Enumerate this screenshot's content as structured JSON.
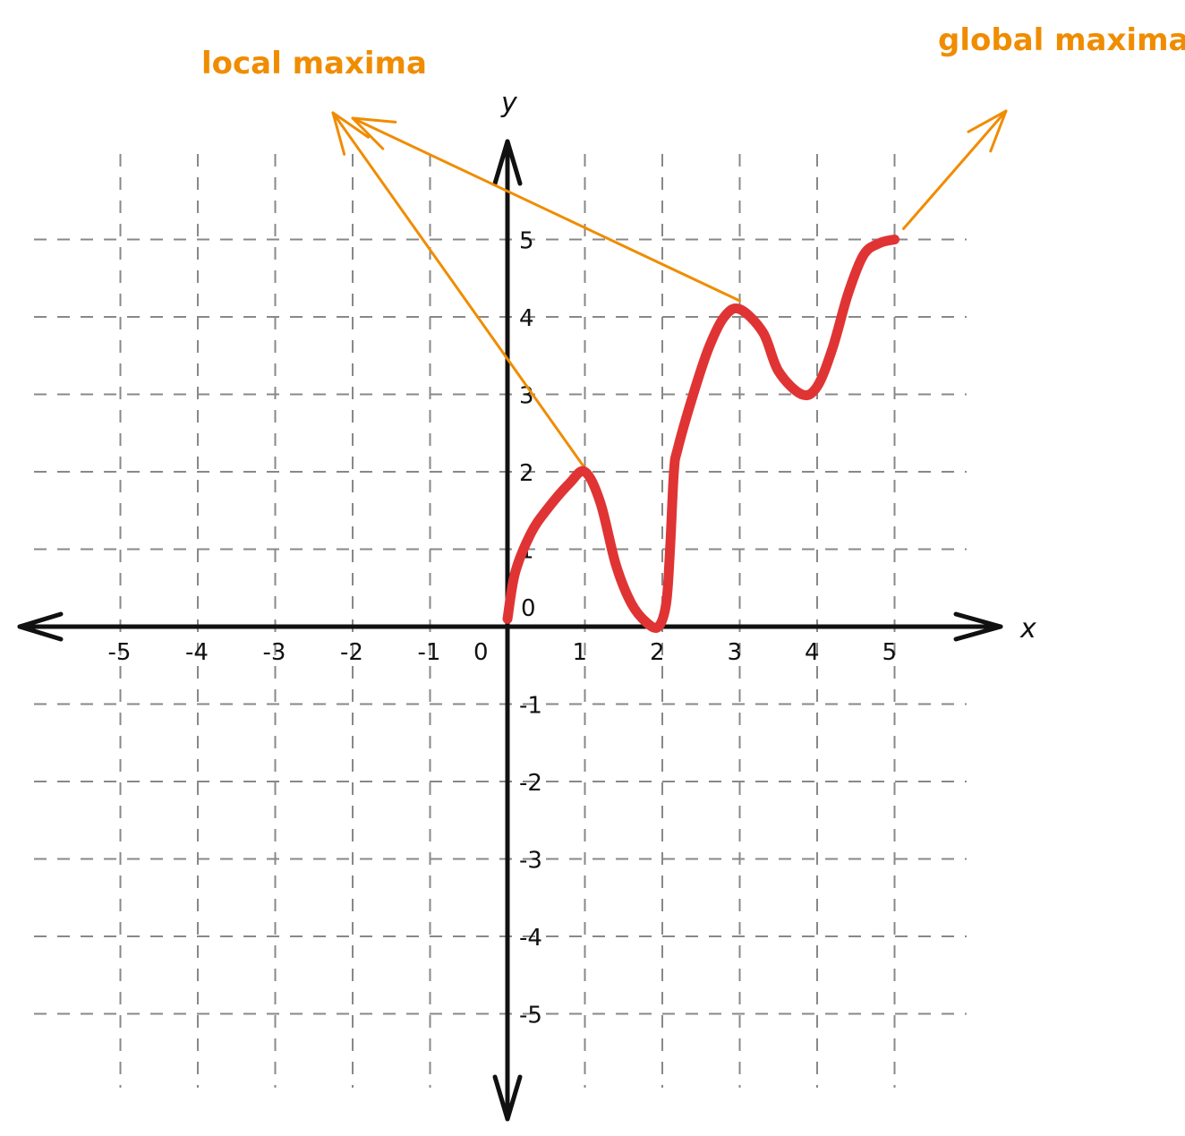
{
  "chart_data": {
    "type": "line",
    "xlabel": "x",
    "ylabel": "y",
    "xlim": [
      -5,
      5
    ],
    "ylim": [
      -5,
      5
    ],
    "grid": true,
    "x_ticks": [
      "-5",
      "-4",
      "-3",
      "-2",
      "-1",
      "0",
      "1",
      "2",
      "3",
      "4",
      "5"
    ],
    "y_ticks": [
      "5",
      "4",
      "3",
      "2",
      "1",
      "0",
      "-1",
      "-2",
      "-3",
      "-4",
      "-5"
    ],
    "series": [
      {
        "x": [
          0,
          0.1,
          0.3,
          0.5,
          0.8,
          1.0,
          1.2,
          1.4,
          1.6,
          1.8,
          1.95,
          2.05,
          2.1,
          2.15,
          2.2,
          2.4,
          2.6,
          2.8,
          3.0,
          3.3,
          3.5,
          3.8,
          4.0,
          4.2,
          4.4,
          4.6,
          4.8,
          5.0
        ],
        "y": [
          0.1,
          0.7,
          1.2,
          1.5,
          1.85,
          2.0,
          1.6,
          0.8,
          0.3,
          0.05,
          0.0,
          0.3,
          1.0,
          2.0,
          2.3,
          3.0,
          3.6,
          4.0,
          4.1,
          3.8,
          3.3,
          3.0,
          3.1,
          3.6,
          4.3,
          4.8,
          4.95,
          5.0
        ],
        "color": "#e03434"
      }
    ],
    "annotations": [
      {
        "text": "local maxima",
        "color": "#f08c00",
        "points_to": [
          [
            1,
            2
          ],
          [
            3,
            4
          ]
        ]
      },
      {
        "text": "global maxima",
        "color": "#f08c00",
        "points_to": [
          [
            5,
            5
          ]
        ]
      }
    ]
  },
  "colors": {
    "curve": "#e03434",
    "annotation": "#f08c00",
    "axis": "#111111",
    "grid": "#888888"
  }
}
